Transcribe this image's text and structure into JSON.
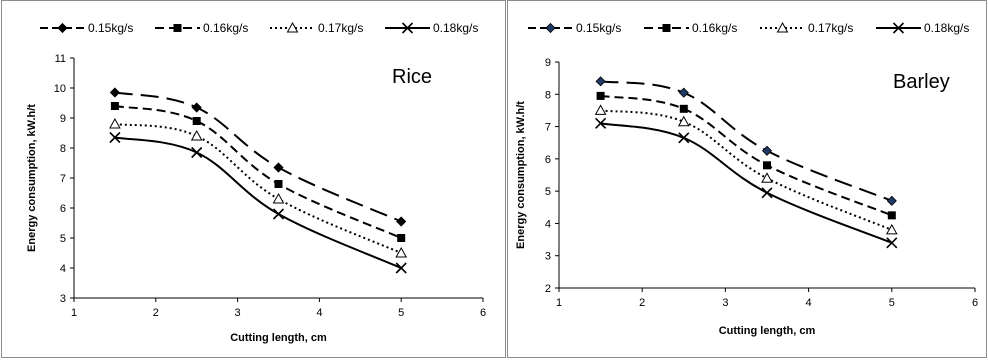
{
  "chart_data": [
    {
      "type": "line",
      "annotation": "Rice",
      "xlabel": "Cutting length, cm",
      "ylabel": "Energy consumption, kW.h/t",
      "xlim": [
        1,
        6
      ],
      "ylim": [
        3,
        11
      ],
      "xticks": [
        "1",
        "2",
        "3",
        "4",
        "5",
        "6"
      ],
      "yticks": [
        "3",
        "4",
        "5",
        "6",
        "7",
        "8",
        "9",
        "10",
        "11"
      ],
      "grid": false,
      "legend_position": "top",
      "x": [
        1.5,
        2.5,
        3.5,
        5
      ],
      "series": [
        {
          "name": "0.15kg/s",
          "marker": "diamond",
          "dash": "long-dash",
          "values": [
            9.85,
            9.35,
            7.35,
            5.55
          ]
        },
        {
          "name": "0.16kg/s",
          "marker": "square",
          "dash": "dash",
          "values": [
            9.4,
            8.9,
            6.8,
            5.0
          ]
        },
        {
          "name": "0.17kg/s",
          "marker": "triangle-open",
          "dash": "dot",
          "values": [
            8.8,
            8.4,
            6.3,
            4.5
          ]
        },
        {
          "name": "0.18kg/s",
          "marker": "x",
          "dash": "solid",
          "values": [
            8.35,
            7.85,
            5.8,
            4.0
          ]
        }
      ]
    },
    {
      "type": "line",
      "annotation": "Barley",
      "xlabel": "Cutting length, cm",
      "ylabel": "Energy consumption, kW.h/t",
      "xlim": [
        1,
        6
      ],
      "ylim": [
        2,
        9
      ],
      "xticks": [
        "1",
        "2",
        "3",
        "4",
        "5",
        "6"
      ],
      "yticks": [
        "2",
        "3",
        "4",
        "5",
        "6",
        "7",
        "8",
        "9"
      ],
      "grid": false,
      "legend_position": "top",
      "x": [
        1.5,
        2.5,
        3.5,
        5
      ],
      "series": [
        {
          "name": "0.15kg/s",
          "marker": "diamond",
          "dash": "long-dash",
          "values": [
            8.4,
            8.05,
            6.25,
            4.7
          ]
        },
        {
          "name": "0.16kg/s",
          "marker": "square",
          "dash": "dash",
          "values": [
            7.95,
            7.55,
            5.8,
            4.25
          ]
        },
        {
          "name": "0.17kg/s",
          "marker": "triangle-open",
          "dash": "dot",
          "values": [
            7.5,
            7.15,
            5.4,
            3.8
          ]
        },
        {
          "name": "0.18kg/s",
          "marker": "x",
          "dash": "solid",
          "values": [
            7.1,
            6.65,
            4.95,
            3.4
          ]
        }
      ]
    }
  ],
  "colors": {
    "series": "#000000",
    "axis": "#000000",
    "border": "#8c8c8c",
    "diamond_fill_right": "#1f3a66"
  }
}
